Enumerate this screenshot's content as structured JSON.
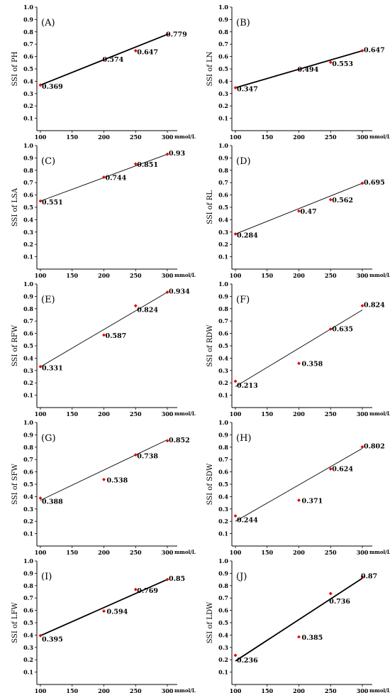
{
  "chart_data": [
    {
      "type": "scatter",
      "label": "(A)",
      "ylabel": "SSI of PH",
      "x_unit": "mmol/L",
      "x": [
        100,
        200,
        250,
        300
      ],
      "y": [
        0.369,
        0.574,
        0.647,
        0.779
      ],
      "point_labels": [
        "0.369",
        "0.574",
        "0.647",
        "0.779"
      ],
      "trendline": [
        [
          100,
          0.369
        ],
        [
          300,
          0.779
        ]
      ],
      "xticks": [
        "100",
        "150",
        "200",
        "250",
        "300"
      ],
      "yticks": [
        "0.1",
        "0.2",
        "0.3",
        "0.4",
        "0.5",
        "0.6",
        "0.7",
        "0.8",
        "0.9",
        "1.0"
      ],
      "xlim": [
        100,
        300
      ],
      "ylim": [
        0,
        1.0
      ],
      "grid": false,
      "color": "#e00000"
    },
    {
      "type": "scatter",
      "label": "(B)",
      "ylabel": "SSI of LN",
      "x_unit": "mmol/L",
      "x": [
        100,
        200,
        250,
        300
      ],
      "y": [
        0.347,
        0.494,
        0.553,
        0.647
      ],
      "point_labels": [
        "0.347",
        "0.494",
        "0.553",
        "0.647"
      ],
      "trendline": [
        [
          100,
          0.347
        ],
        [
          300,
          0.647
        ]
      ],
      "xticks": [
        "100",
        "150",
        "200",
        "250",
        "300"
      ],
      "yticks": [
        "0.1",
        "0.2",
        "0.3",
        "0.4",
        "0.5",
        "0.6",
        "0.7",
        "0.8",
        "0.9",
        "1.0"
      ],
      "xlim": [
        100,
        300
      ],
      "ylim": [
        0,
        1.0
      ],
      "grid": false,
      "color": "#e00000"
    },
    {
      "type": "scatter",
      "label": "(C)",
      "ylabel": "SSI of LSA",
      "x_unit": "mmol/L",
      "x": [
        100,
        200,
        250,
        300
      ],
      "y": [
        0.551,
        0.744,
        0.851,
        0.93
      ],
      "point_labels": [
        "0.551",
        "0.744",
        "0.851",
        "0.93"
      ],
      "trendline": [
        [
          100,
          0.551
        ],
        [
          300,
          0.93
        ]
      ],
      "xticks": [
        "100",
        "150",
        "200",
        "250",
        "300"
      ],
      "yticks": [
        "0.1",
        "0.2",
        "0.3",
        "0.4",
        "0.5",
        "0.6",
        "0.7",
        "0.8",
        "0.9",
        "1.0"
      ],
      "xlim": [
        100,
        300
      ],
      "ylim": [
        0,
        1.0
      ],
      "grid": false,
      "color": "#e00000"
    },
    {
      "type": "scatter",
      "label": "(D)",
      "ylabel": "SSI of RL",
      "x_unit": "mmol/L",
      "x": [
        100,
        200,
        250,
        300
      ],
      "y": [
        0.284,
        0.47,
        0.562,
        0.695
      ],
      "point_labels": [
        "0.284",
        "0.47",
        "0.562",
        "0.695"
      ],
      "trendline": [
        [
          100,
          0.284
        ],
        [
          300,
          0.695
        ]
      ],
      "xticks": [
        "100",
        "150",
        "200",
        "250",
        "300"
      ],
      "yticks": [
        "0.1",
        "0.2",
        "0.3",
        "0.4",
        "0.5",
        "0.6",
        "0.7",
        "0.8",
        "0.9",
        "1.0"
      ],
      "xlim": [
        100,
        300
      ],
      "ylim": [
        0,
        1.0
      ],
      "grid": false,
      "color": "#e00000"
    },
    {
      "type": "scatter",
      "label": "(E)",
      "ylabel": "SSI of RFW",
      "x_unit": "mmol/L",
      "x": [
        100,
        200,
        250,
        300
      ],
      "y": [
        0.331,
        0.587,
        0.824,
        0.934
      ],
      "point_labels": [
        "0.331",
        "0.587",
        "0.824",
        "0.934"
      ],
      "trendline": [
        [
          100,
          0.33
        ],
        [
          300,
          0.934
        ]
      ],
      "xticks": [
        "100",
        "150",
        "200",
        "250",
        "300"
      ],
      "yticks": [
        "0.1",
        "0.2",
        "0.3",
        "0.4",
        "0.5",
        "0.6",
        "0.7",
        "0.8",
        "0.9",
        "1.0"
      ],
      "xlim": [
        100,
        300
      ],
      "ylim": [
        0,
        1.0
      ],
      "grid": false,
      "color": "#e00000"
    },
    {
      "type": "scatter",
      "label": "(F)",
      "ylabel": "SSI of RDW",
      "x_unit": "mmol/L",
      "x": [
        100,
        200,
        250,
        300
      ],
      "y": [
        0.213,
        0.358,
        0.635,
        0.824
      ],
      "point_labels": [
        "0.213",
        "0.358",
        "0.635",
        "0.824"
      ],
      "trendline": [
        [
          100,
          0.17
        ],
        [
          300,
          0.79
        ]
      ],
      "xticks": [
        "100",
        "150",
        "200",
        "250",
        "300"
      ],
      "yticks": [
        "0.1",
        "0.2",
        "0.3",
        "0.4",
        "0.5",
        "0.6",
        "0.7",
        "0.8",
        "0.9",
        "1.0"
      ],
      "xlim": [
        100,
        300
      ],
      "ylim": [
        0,
        1.0
      ],
      "grid": false,
      "color": "#e00000"
    },
    {
      "type": "scatter",
      "label": "(G)",
      "ylabel": "SSI of SFW",
      "x_unit": "mmol/L",
      "x": [
        100,
        200,
        250,
        300
      ],
      "y": [
        0.388,
        0.538,
        0.738,
        0.852
      ],
      "point_labels": [
        "0.388",
        "0.538",
        "0.738",
        "0.852"
      ],
      "trendline": [
        [
          100,
          0.37
        ],
        [
          300,
          0.86
        ]
      ],
      "xticks": [
        "100",
        "150",
        "200",
        "250",
        "300"
      ],
      "yticks": [
        "0.1",
        "0.2",
        "0.3",
        "0.4",
        "0.5",
        "0.6",
        "0.7",
        "0.8",
        "0.9",
        "1.0"
      ],
      "xlim": [
        100,
        300
      ],
      "ylim": [
        0,
        1.0
      ],
      "grid": false,
      "color": "#e00000"
    },
    {
      "type": "scatter",
      "label": "(H)",
      "ylabel": "SSI of SDW",
      "x_unit": "mmol/L",
      "x": [
        100,
        200,
        250,
        300
      ],
      "y": [
        0.244,
        0.371,
        0.624,
        0.802
      ],
      "point_labels": [
        "0.244",
        "0.371",
        "0.624",
        "0.802"
      ],
      "trendline": [
        [
          100,
          0.2
        ],
        [
          300,
          0.79
        ]
      ],
      "xticks": [
        "100",
        "150",
        "200",
        "250",
        "300"
      ],
      "yticks": [
        "0.1",
        "0.2",
        "0.3",
        "0.4",
        "0.5",
        "0.6",
        "0.7",
        "0.8",
        "0.9",
        "1.0"
      ],
      "xlim": [
        100,
        300
      ],
      "ylim": [
        0,
        1.0
      ],
      "grid": false,
      "color": "#e00000"
    },
    {
      "type": "scatter",
      "label": "(I)",
      "ylabel": "SSI of LFW",
      "x_unit": "mmol/L",
      "x": [
        100,
        200,
        250,
        300
      ],
      "y": [
        0.395,
        0.594,
        0.769,
        0.85
      ],
      "point_labels": [
        "0.395",
        "0.594",
        "0.769",
        "0.85"
      ],
      "trendline": [
        [
          100,
          0.395
        ],
        [
          300,
          0.85
        ]
      ],
      "xticks": [
        "100",
        "150",
        "200",
        "250",
        "300"
      ],
      "yticks": [
        "0.1",
        "0.2",
        "0.3",
        "0.4",
        "0.5",
        "0.6",
        "0.7",
        "0.8",
        "0.9",
        "1.0"
      ],
      "xlim": [
        100,
        300
      ],
      "ylim": [
        0,
        1.0
      ],
      "grid": false,
      "color": "#e00000"
    },
    {
      "type": "scatter",
      "label": "(J)",
      "ylabel": "SSI of LDW",
      "x_unit": "mmol/L",
      "x": [
        100,
        200,
        250,
        300
      ],
      "y": [
        0.236,
        0.385,
        0.736,
        0.87
      ],
      "point_labels": [
        "0.236",
        "0.385",
        "0.736",
        "0.87"
      ],
      "trendline": [
        [
          100,
          0.19
        ],
        [
          300,
          0.86
        ]
      ],
      "xticks": [
        "100",
        "150",
        "200",
        "250",
        "300"
      ],
      "yticks": [
        "0.1",
        "0.2",
        "0.3",
        "0.4",
        "0.5",
        "0.6",
        "0.7",
        "0.8",
        "0.9",
        "1.0"
      ],
      "xlim": [
        100,
        300
      ],
      "ylim": [
        0,
        1.0
      ],
      "grid": false,
      "color": "#e00000"
    }
  ]
}
